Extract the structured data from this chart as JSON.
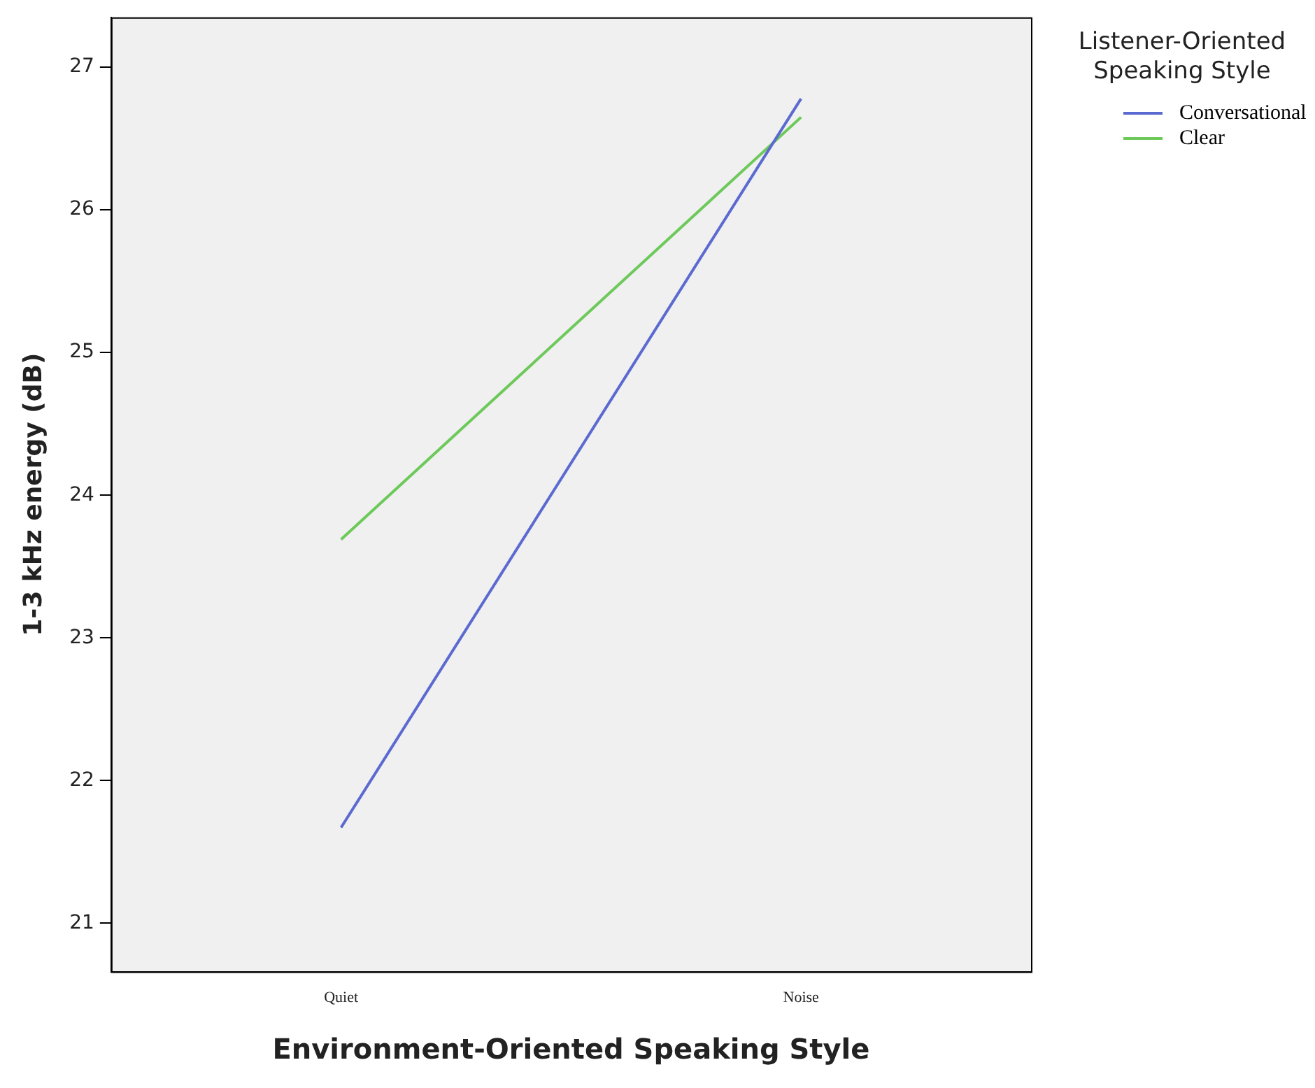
{
  "chart_data": {
    "type": "line",
    "xlabel": "Environment-Oriented Speaking Style",
    "ylabel": "1-3 kHz energy (dB)",
    "legend_title": "Listener-Oriented Speaking Style",
    "categories": [
      "Quiet",
      "Noise"
    ],
    "series": [
      {
        "name": "Conversational",
        "color": "#5b6ad0",
        "values": [
          21.67,
          26.78
        ]
      },
      {
        "name": "Clear",
        "color": "#6cc95a",
        "values": [
          23.69,
          26.65
        ]
      }
    ],
    "ylim": [
      20.66,
      27.35
    ],
    "yticks": [
      21,
      22,
      23,
      24,
      25,
      26,
      27
    ],
    "grid": false,
    "legend": "right",
    "marker": "none",
    "line_style": "solid"
  }
}
